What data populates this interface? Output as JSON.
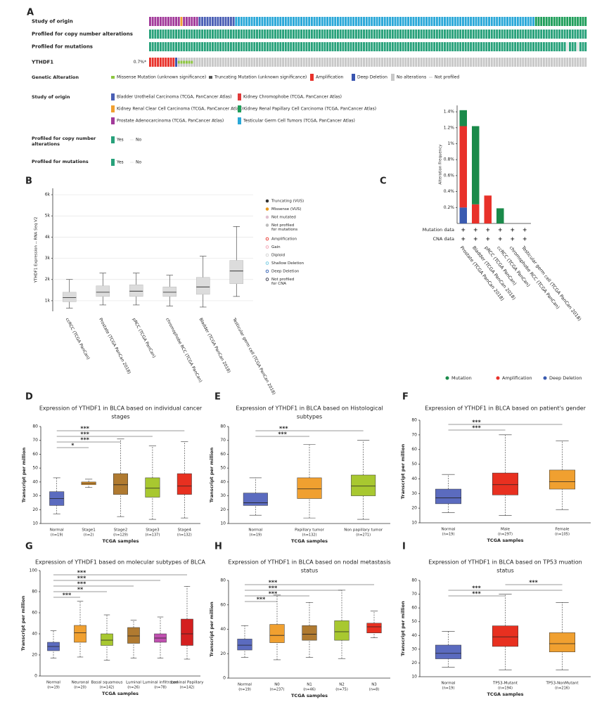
{
  "panel_labels": [
    "A",
    "B",
    "C",
    "D",
    "E",
    "F",
    "G",
    "H",
    "I"
  ],
  "oncoprint": {
    "tracks": [
      {
        "label": "Study of origin",
        "segments": [
          {
            "count": 12,
            "color": "#a23a9a"
          },
          {
            "count": 1,
            "color": "#f0a030"
          },
          {
            "count": 6,
            "color": "#a23a9a"
          },
          {
            "count": 14,
            "color": "#4a5fb5"
          },
          {
            "count": 115,
            "color": "#2aa8d8"
          },
          {
            "count": 20,
            "color": "#1f9e5a"
          }
        ]
      },
      {
        "label": "Profiled for copy number alterations",
        "segments": [
          {
            "count": 168,
            "color": "#27a17a"
          }
        ]
      },
      {
        "label": "Profiled for mutations",
        "segments": [
          {
            "count": 160,
            "color": "#27a17a"
          },
          {
            "count": 1,
            "color": "#e6e6e6"
          },
          {
            "count": 3,
            "color": "#27a17a"
          },
          {
            "count": 1,
            "color": "#e6e6e6"
          },
          {
            "count": 3,
            "color": "#27a17a"
          }
        ]
      },
      {
        "label": "YTHDF1",
        "frequency": "0.7%*",
        "segments": [
          {
            "count": 10,
            "color": "#e8312a"
          },
          {
            "count": 1,
            "color": "#3a55b0"
          },
          {
            "count": 6,
            "color": "#8cc63f",
            "style": "small"
          },
          {
            "count": 151,
            "color": "#c8c8c8"
          }
        ]
      }
    ],
    "legends": [
      {
        "title": [
          "Genetic Alteration"
        ],
        "items": [
          {
            "label": "Missense Mutation (unknown significance)",
            "color": "#8cc63f",
            "style": "small"
          },
          {
            "label": "Truncating Mutation (unknown significance)",
            "color": "#555555",
            "style": "small"
          },
          {
            "label": "Amplification",
            "color": "#e8312a",
            "style": "full"
          },
          {
            "label": "Deep Deletion",
            "color": "#3a55b0",
            "style": "full"
          },
          {
            "label": "No alterations",
            "color": "#c8c8c8",
            "style": "full"
          },
          {
            "label": "Not profiled",
            "color": "#c8c8c8",
            "style": "line"
          }
        ]
      },
      {
        "title": [
          "Study of origin"
        ],
        "items": [
          {
            "label": "Bladder Urothelial Carcinoma (TCGA, PanCancer Atlas)",
            "color": "#4a5fb5",
            "style": "full"
          },
          {
            "label": "Kidney Chromophobe (TCGA, PanCancer Atlas)",
            "color": "#e03a3a",
            "style": "full"
          },
          {
            "label": "Kidney Renal Clear Cell Carcinoma (TCGA, PanCancer Atlas)",
            "color": "#f0a030",
            "style": "full"
          },
          {
            "label": "Kidney Renal Papillary Cell Carcinoma (TCGA, PanCancer Atlas)",
            "color": "#1f9e5a",
            "style": "full"
          },
          {
            "label": "Prostate Adenocarcinoma (TCGA, PanCancer Atlas)",
            "color": "#a23a9a",
            "style": "full"
          },
          {
            "label": "Testicular Germ Cell Tumors (TCGA, PanCancer Atlas)",
            "color": "#2aa8d8",
            "style": "full"
          }
        ]
      },
      {
        "title": [
          "Profiled for copy number",
          "alterations"
        ],
        "items": [
          {
            "label": "Yes",
            "color": "#27a17a",
            "style": "full"
          },
          {
            "label": "No",
            "color": "#e6e6e6",
            "style": "line"
          }
        ]
      },
      {
        "title": [
          "Profiled for mutations"
        ],
        "items": [
          {
            "label": "Yes",
            "color": "#27a17a",
            "style": "full"
          },
          {
            "label": "No",
            "color": "#e6e6e6",
            "style": "line"
          }
        ]
      }
    ]
  },
  "chart_data": [
    {
      "type": "box",
      "ylabel": "YTHDF1 Expression -- RNA Seq V2",
      "categories": [
        "ccRCC (TCGA PanCan)",
        "Prostate (TCGA PanCan 2018)",
        "pRCC (TCGA PanCan)",
        "chromophobe RCC (TCGA PanCan)",
        "Bladder (TCGA PanCan 2018)",
        "Testicular germ cell (TCGA PanCan 2018)"
      ],
      "boxes": [
        [
          650,
          950,
          1150,
          1400,
          2000
        ],
        [
          800,
          1200,
          1400,
          1700,
          2300
        ],
        [
          800,
          1200,
          1450,
          1750,
          2300
        ],
        [
          750,
          1200,
          1400,
          1650,
          2200
        ],
        [
          700,
          1300,
          1650,
          2100,
          3100
        ],
        [
          1200,
          1800,
          2400,
          2900,
          4500
        ]
      ],
      "color": "#dcdcdc",
      "grid": true,
      "ylim": [
        500,
        6300
      ],
      "yticks": [
        {
          "value": 1000,
          "label": "1k"
        },
        {
          "value": 2000,
          "label": "2k"
        },
        {
          "value": 3000,
          "label": "3k"
        },
        {
          "value": 4000,
          "label": "4k"
        },
        {
          "value": 5000,
          "label": "5k"
        },
        {
          "value": 6000,
          "label": "6k"
        }
      ],
      "legend": [
        {
          "label": [
            "Truncating (VUS)"
          ],
          "color": "#333333"
        },
        {
          "label": [
            "Missense (VUS)"
          ],
          "color": "#e89a20"
        },
        {
          "label": [
            "Not mutated"
          ],
          "color": "#e0c0d0"
        },
        {
          "label": [
            "Not profiled",
            "for mutations"
          ],
          "color": "#bdbdbd"
        },
        {
          "label": [
            "Amplification"
          ],
          "color": "#e8312a"
        },
        {
          "label": [
            "Gain"
          ],
          "color": "#f2a0b0"
        },
        {
          "label": [
            "Diploid"
          ],
          "color": "#d0d0d0"
        },
        {
          "label": [
            "Shallow Deletion"
          ],
          "color": "#6cc8e0"
        },
        {
          "label": [
            "Deep Deletion"
          ],
          "color": "#2a5ab0"
        },
        {
          "label": [
            "Not profiled",
            "for CNA"
          ],
          "color": "#333344"
        }
      ]
    },
    {
      "type": "stacked_bar",
      "ylabel": "Alteration Frequency",
      "categories": [
        "Prostate (TCGA PanCan 2018)",
        "Bladder (TCGA PanCan 2018)",
        "pRCC (TCGA PanCan)",
        "ccRCC (TCGA PanCan)",
        "chromophobe RCC (TCGA PanCan)",
        "Testicular germ cell (TCGA PanCan 2018)"
      ],
      "series": [
        {
          "name": "Mutation",
          "color": "#1a8a4a",
          "values": [
            0.2,
            0.98,
            0,
            0.19,
            0,
            0
          ]
        },
        {
          "name": "Amplification",
          "color": "#e8312a",
          "values": [
            1.02,
            0.24,
            0.35,
            0,
            0,
            0
          ]
        },
        {
          "name": "Deep Deletion",
          "color": "#3a5bb0",
          "values": [
            0.2,
            0,
            0,
            0,
            0,
            0
          ]
        }
      ],
      "ylim": [
        0,
        1.48
      ],
      "yticks": [
        {
          "value": 0.2,
          "label": "0.2%"
        },
        {
          "value": 0.4,
          "label": "0.4%"
        },
        {
          "value": 0.6,
          "label": "0.6%"
        },
        {
          "value": 0.8,
          "label": "0.8%"
        },
        {
          "value": 1,
          "label": "1%"
        },
        {
          "value": 1.2,
          "label": "1.2%"
        },
        {
          "value": 1.4,
          "label": "1.4%"
        }
      ],
      "rows": [
        {
          "label": "Mutation data",
          "marks": [
            "+",
            "+",
            "+",
            "+",
            "+",
            "+"
          ]
        },
        {
          "label": "CNA data",
          "marks": [
            "+",
            "+",
            "+",
            "+",
            "+",
            "+"
          ]
        }
      ]
    },
    {
      "type": "box",
      "title": [
        "Expression of YTHDF1 in BLCA based on individual cancer",
        "stages"
      ],
      "ylabel": "Transcript per million",
      "xlabel": "TCGA samples",
      "categories": [
        "Normal",
        "Stage1",
        "Stage2",
        "Stage3",
        "Stage4"
      ],
      "n_labels": [
        "(n=19)",
        "(n=2)",
        "(n=129)",
        "(n=137)",
        "(n=132)"
      ],
      "boxes": [
        [
          17,
          23,
          28,
          33,
          43
        ],
        [
          36,
          38,
          39,
          40,
          42
        ],
        [
          15,
          31,
          38,
          46,
          71
        ],
        [
          13,
          29,
          35.5,
          43,
          66
        ],
        [
          14,
          31,
          37,
          46,
          69
        ]
      ],
      "colors": [
        "#5b6bbf",
        "#f0a030",
        "#b07a30",
        "#a8c830",
        "#e83020"
      ],
      "ylim": [
        10,
        80
      ],
      "yticks": [
        10,
        20,
        30,
        40,
        50,
        60,
        70,
        80
      ],
      "significance": [
        {
          "between": [
            "Normal",
            "Stage1"
          ],
          "label": "*"
        },
        {
          "between": [
            "Normal",
            "Stage2"
          ],
          "label": "***"
        },
        {
          "between": [
            "Normal",
            "Stage3"
          ],
          "label": "***"
        },
        {
          "between": [
            "Normal",
            "Stage4"
          ],
          "label": "***"
        }
      ]
    },
    {
      "type": "box",
      "title": [
        "Expression of YTHDF1 in BLCA based on Histological",
        "subtypes"
      ],
      "ylabel": "Transcript per million",
      "xlabel": "TCGA samples",
      "categories": [
        "Normal",
        "Papillary tumor",
        "Non papillary tumor"
      ],
      "n_labels": [
        "(n=19)",
        "(n=132)",
        "(n=271)"
      ],
      "boxes": [
        [
          16,
          23,
          25,
          32,
          43
        ],
        [
          14,
          28,
          35,
          43,
          67
        ],
        [
          13,
          30,
          37,
          45,
          70
        ]
      ],
      "colors": [
        "#5b6bbf",
        "#f0a030",
        "#a8c830"
      ],
      "ylim": [
        10,
        80
      ],
      "yticks": [
        10,
        20,
        30,
        40,
        50,
        60,
        70,
        80
      ],
      "significance": [
        {
          "between": [
            "Normal",
            "Papillary tumor"
          ],
          "label": "***"
        },
        {
          "between": [
            "Normal",
            "Non papillary tumor"
          ],
          "label": "***"
        }
      ]
    },
    {
      "type": "box",
      "title": [
        "Expression of YTHDF1 in BLCA based on patient's gender"
      ],
      "ylabel": "Transcript per million",
      "xlabel": "TCGA samples",
      "categories": [
        "Normal",
        "Male",
        "Female"
      ],
      "n_labels": [
        "(n=19)",
        "(n=297)",
        "(n=105)"
      ],
      "boxes": [
        [
          17,
          23,
          27,
          33,
          43
        ],
        [
          15,
          29,
          36,
          44,
          70
        ],
        [
          19,
          33,
          38,
          46,
          66
        ]
      ],
      "colors": [
        "#5b6bbf",
        "#e83020",
        "#f0a030"
      ],
      "ylim": [
        10,
        80
      ],
      "yticks": [
        10,
        20,
        30,
        40,
        50,
        60,
        70,
        80
      ],
      "significance": [
        {
          "between": [
            "Normal",
            "Male"
          ],
          "label": "***"
        },
        {
          "between": [
            "Normal",
            "Female"
          ],
          "label": "***"
        }
      ]
    },
    {
      "type": "box",
      "title": [
        "Expression of YTHDF1 based on molecular subtypes of BLCA"
      ],
      "ylabel": "Transcript per million",
      "xlabel": "TCGA samples",
      "categories": [
        "Normal",
        "Neuronal",
        "Basal squamous",
        "Luminal",
        "Luminal infiltrated",
        "Luminal Papillary"
      ],
      "n_labels": [
        "(n=19)",
        "(n=20)",
        "(n=142)",
        "(n=26)",
        "(n=78)",
        "(n=142)"
      ],
      "boxes": [
        [
          17,
          24,
          28,
          32,
          43
        ],
        [
          18,
          32,
          41,
          48,
          71
        ],
        [
          15,
          29,
          34,
          40,
          58
        ],
        [
          17,
          31,
          38,
          46,
          53
        ],
        [
          17,
          32,
          36,
          40,
          56
        ],
        [
          16,
          29,
          40,
          54,
          85
        ]
      ],
      "colors": [
        "#5b6bbf",
        "#f0a030",
        "#a8c830",
        "#b07a30",
        "#c050b0",
        "#d42020"
      ],
      "ylim": [
        0,
        100
      ],
      "yticks": [
        0,
        20,
        40,
        60,
        80,
        100
      ],
      "significance": [
        {
          "between": [
            "Normal",
            "Neuronal"
          ],
          "label": "***"
        },
        {
          "between": [
            "Normal",
            "Basal squamous"
          ],
          "label": "**"
        },
        {
          "between": [
            "Normal",
            "Luminal"
          ],
          "label": "***"
        },
        {
          "between": [
            "Normal",
            "Luminal infiltrated"
          ],
          "label": "***"
        },
        {
          "between": [
            "Normal",
            "Luminal Papillary"
          ],
          "label": "***"
        }
      ]
    },
    {
      "type": "box",
      "title": [
        "Expression of YTHDF1 in BLCA based on nodal metastasis",
        "status"
      ],
      "ylabel": "Transcript per million",
      "xlabel": "TCGA samples",
      "categories": [
        "Normal",
        "N0",
        "N1",
        "N2",
        "N3"
      ],
      "n_labels": [
        "(n=19)",
        "(n=237)",
        "(n=46)",
        "(n=75)",
        "(n=8)"
      ],
      "boxes": [
        [
          17,
          23,
          27,
          32,
          43
        ],
        [
          15,
          29,
          35,
          44,
          68
        ],
        [
          17,
          31,
          36,
          43,
          62
        ],
        [
          16,
          31,
          38,
          47,
          72
        ],
        [
          33,
          37,
          42,
          45,
          55
        ]
      ],
      "colors": [
        "#5b6bbf",
        "#f0a030",
        "#b07a30",
        "#a8c830",
        "#e83020"
      ],
      "ylim": [
        0,
        80
      ],
      "yticks": [
        0,
        20,
        40,
        60,
        80
      ],
      "significance": [
        {
          "between": [
            "Normal",
            "N0"
          ],
          "label": "***"
        },
        {
          "between": [
            "Normal",
            "N1"
          ],
          "label": "***"
        },
        {
          "between": [
            "Normal",
            "N2"
          ],
          "label": "***"
        },
        {
          "between": [
            "Normal",
            "N3"
          ],
          "label": "***"
        }
      ]
    },
    {
      "type": "box",
      "title": [
        "Expression of YTHDF1 in BLCA based on TP53 muation",
        "status"
      ],
      "ylabel": "Transcript per million",
      "xlabel": "TCGA samples",
      "categories": [
        "Normal",
        "TP53-Mutant",
        "TP53-NonMutant"
      ],
      "n_labels": [
        "(n=19)",
        "(n=194)",
        "(n=216)"
      ],
      "boxes": [
        [
          17,
          23,
          27,
          33,
          43
        ],
        [
          15,
          32,
          39,
          47,
          70
        ],
        [
          15,
          28,
          34,
          42,
          64
        ]
      ],
      "colors": [
        "#5b6bbf",
        "#e83020",
        "#f0a030"
      ],
      "ylim": [
        10,
        80
      ],
      "yticks": [
        10,
        20,
        30,
        40,
        50,
        60,
        70,
        80
      ],
      "significance": [
        {
          "between": [
            "Normal",
            "TP53-Mutant"
          ],
          "label": "***"
        },
        {
          "between": [
            "Normal",
            "TP53-NonMutant"
          ],
          "label": "***"
        },
        {
          "between": [
            "TP53-Mutant",
            "TP53-NonMutant"
          ],
          "label": "***"
        }
      ]
    }
  ]
}
